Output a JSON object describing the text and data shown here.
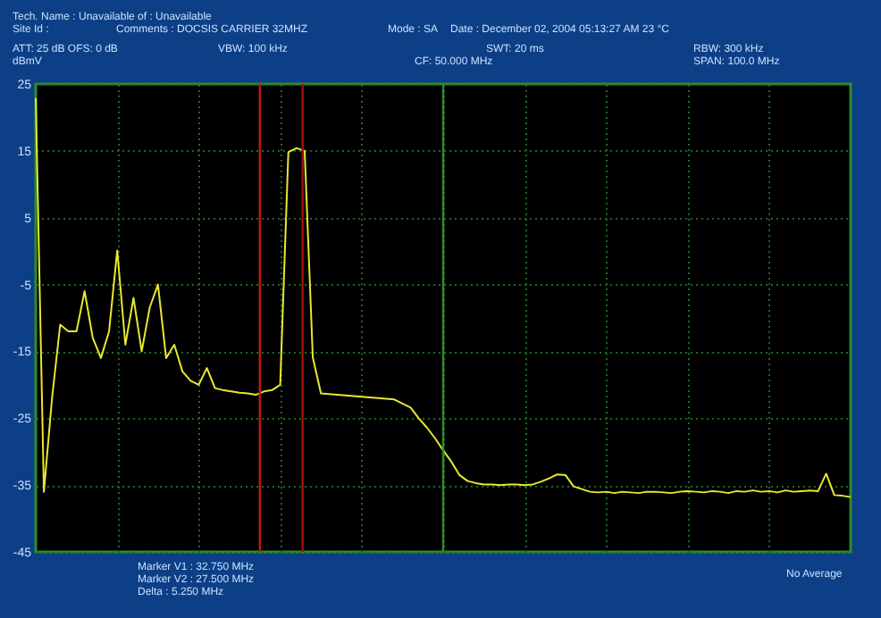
{
  "chart_data": {
    "type": "line",
    "ylabel": "dBmV",
    "categories": [
      null,
      null,
      null,
      null,
      null,
      null,
      null,
      null,
      null,
      null,
      null,
      null,
      null,
      null,
      null,
      null,
      null,
      null,
      null,
      null,
      null,
      null,
      null,
      null,
      null,
      null,
      null,
      null,
      null,
      null,
      null,
      null,
      null,
      null,
      null,
      null,
      null,
      null,
      null,
      null,
      null,
      null,
      null,
      null,
      null,
      null,
      null,
      null,
      null,
      null,
      null,
      null,
      null,
      null,
      null,
      null,
      null,
      null,
      null,
      null,
      null,
      null,
      null,
      null,
      null,
      null,
      null,
      null,
      null,
      null,
      null,
      null,
      null,
      null,
      null,
      null,
      null,
      null,
      null,
      null,
      null,
      null,
      null,
      null,
      null,
      null,
      null,
      null,
      null,
      null,
      null,
      null,
      null,
      null,
      null,
      null,
      null,
      null,
      null,
      null,
      null
    ],
    "series": [
      {
        "color": "#e8e830",
        "values": [
          22.9,
          -36,
          -22,
          -11,
          -12,
          -12,
          -6,
          -13,
          -16,
          -12,
          0.1,
          -14,
          -7,
          -15,
          -8.4,
          -5,
          -16,
          -14,
          -18,
          -19.4,
          -20,
          -17.5,
          -20.5,
          -20.8,
          -21,
          -21.2,
          -21.3,
          -21.5,
          -21,
          -20.8,
          -20,
          14.8,
          15.4,
          15,
          -15.9,
          -21.3,
          -21.4,
          -21.5,
          -21.6,
          -21.7,
          -21.8,
          -21.9,
          -22,
          -22.1,
          -22.2,
          -22.8,
          -23.4,
          -25,
          -26.4,
          -28,
          -29.8,
          -31.5,
          -33.5,
          -34.4,
          -34.7,
          -34.9,
          -34.9,
          -35,
          -34.9,
          -34.9,
          -35,
          -34.9,
          -34.5,
          -34,
          -33.4,
          -33.5,
          -35.2,
          -35.6,
          -36,
          -36.1,
          -36,
          -36.2,
          -36,
          -36.1,
          -36.2,
          -36,
          -36,
          -36.1,
          -36.2,
          -36,
          -35.9,
          -36,
          -36.1,
          -35.9,
          -36,
          -36.2,
          -35.9,
          -36,
          -35.8,
          -36,
          -35.9,
          -36.1,
          -35.8,
          -36,
          -35.9,
          -35.8,
          -35.9,
          -33.3,
          -36.5,
          -36.6,
          -36.8
        ]
      }
    ],
    "ylim": [
      -45,
      25
    ],
    "yticks": [
      -45,
      -35,
      -25,
      -15,
      -5,
      5,
      15,
      25
    ],
    "tick_labels": "y",
    "grid": true,
    "marker": "none",
    "line_style": "solid",
    "annotations": [
      "Tech. Name : Unavailable   of : Unavailable",
      "Site Id :",
      "Comments : DOCSIS CARRIER 32MHZ",
      "Mode : SA",
      "Date : December 02, 2004   05:13:27 AM   23 °C",
      "ATT: 25 dB   OFS: 0 dB",
      "VBW: 100 kHz",
      "SWT: 20 ms",
      "CF: 50.000 MHz",
      "RBW: 300 kHz",
      "SPAN: 100.0 MHz",
      "Marker V1 :   32.750 MHz",
      "Marker V2 :   27.500 MHz",
      "Delta        :     5.250 MHz",
      "No Average"
    ]
  }
}
